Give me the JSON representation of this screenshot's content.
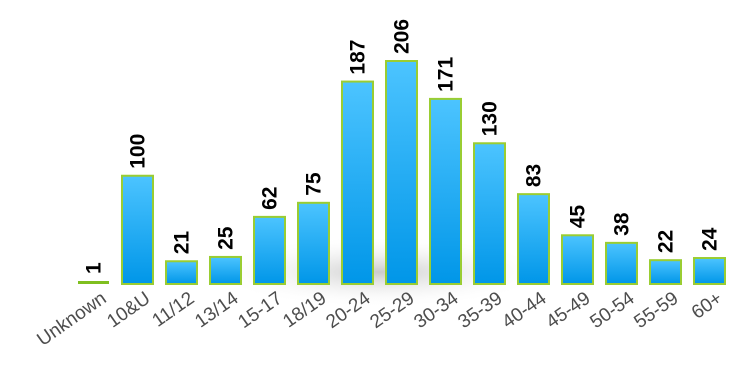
{
  "chart_data": {
    "type": "bar",
    "title": "",
    "xlabel": "",
    "ylabel": "",
    "categories": [
      "Unknown",
      "10&U",
      "11/12",
      "13/14",
      "15-17",
      "18/19",
      "20-24",
      "25-29",
      "30-34",
      "35-39",
      "40-44",
      "45-49",
      "50-54",
      "55-59",
      "60+"
    ],
    "values": [
      1,
      100,
      21,
      25,
      62,
      75,
      187,
      206,
      171,
      130,
      83,
      45,
      38,
      22,
      24
    ],
    "data_labels": [
      "1",
      "100",
      "21",
      "25",
      "62",
      "75",
      "187",
      "206",
      "171",
      "130",
      "83",
      "45",
      "38",
      "22",
      "24"
    ],
    "ylim": [
      0,
      206
    ],
    "grid": false,
    "legend": "none",
    "colors": {
      "bar_top": "#4cc4ff",
      "bar_bottom": "#0096e8",
      "bar_border": "#9acd32",
      "baseline": "#7fbf1f",
      "tick_text": "#4d4d4d",
      "label_text": "#000000"
    }
  }
}
